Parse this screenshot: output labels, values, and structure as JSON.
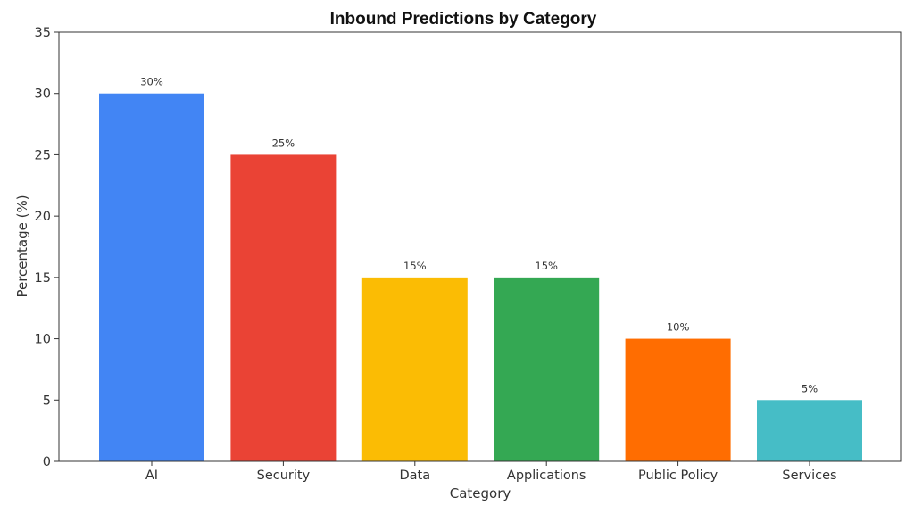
{
  "chart_data": {
    "type": "bar",
    "title": "Inbound Predictions by Category",
    "xlabel": "Category",
    "ylabel": "Percentage (%)",
    "categories": [
      "AI",
      "Security",
      "Data",
      "Applications",
      "Public Policy",
      "Services"
    ],
    "values": [
      30,
      25,
      15,
      15,
      10,
      5
    ],
    "data_labels": [
      "30%",
      "25%",
      "15%",
      "15%",
      "10%",
      "5%"
    ],
    "colors": [
      "#4285F4",
      "#EA4335",
      "#FBBC04",
      "#34A853",
      "#FF6D01",
      "#46BDC6"
    ],
    "ylim": [
      0,
      35
    ],
    "yticks": [
      0,
      5,
      10,
      15,
      20,
      25,
      30,
      35
    ],
    "grid": false,
    "legend": "none"
  }
}
